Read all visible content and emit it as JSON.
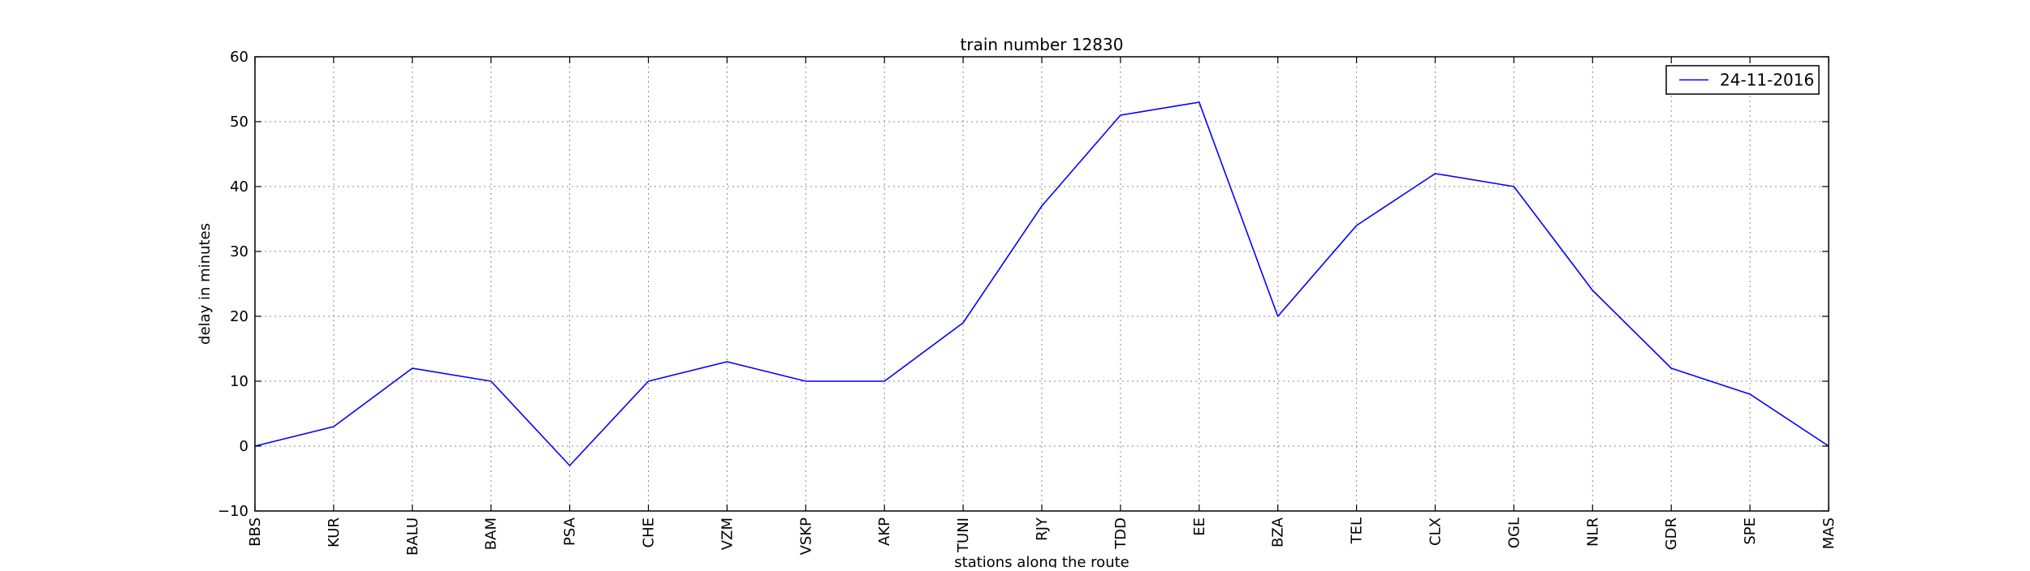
{
  "chart_data": {
    "type": "line",
    "title": "train number 12830",
    "xlabel": "stations along the route",
    "ylabel": "delay in minutes",
    "categories": [
      "BBS",
      "KUR",
      "BALU",
      "BAM",
      "PSA",
      "CHE",
      "VZM",
      "VSKP",
      "AKP",
      "TUNI",
      "RJY",
      "TDD",
      "EE",
      "BZA",
      "TEL",
      "CLX",
      "OGL",
      "NLR",
      "GDR",
      "SPE",
      "MAS"
    ],
    "series": [
      {
        "name": "24-11-2016",
        "values": [
          0,
          3,
          12,
          10,
          -3,
          10,
          13,
          10,
          10,
          19,
          37,
          51,
          53,
          20,
          34,
          42,
          40,
          24,
          12,
          8,
          0
        ],
        "color": "#0000ff"
      }
    ],
    "ylim": [
      -10,
      60
    ],
    "yticks": [
      -10,
      0,
      10,
      20,
      30,
      40,
      50,
      60
    ],
    "grid": true,
    "legend_position": "top-right"
  }
}
